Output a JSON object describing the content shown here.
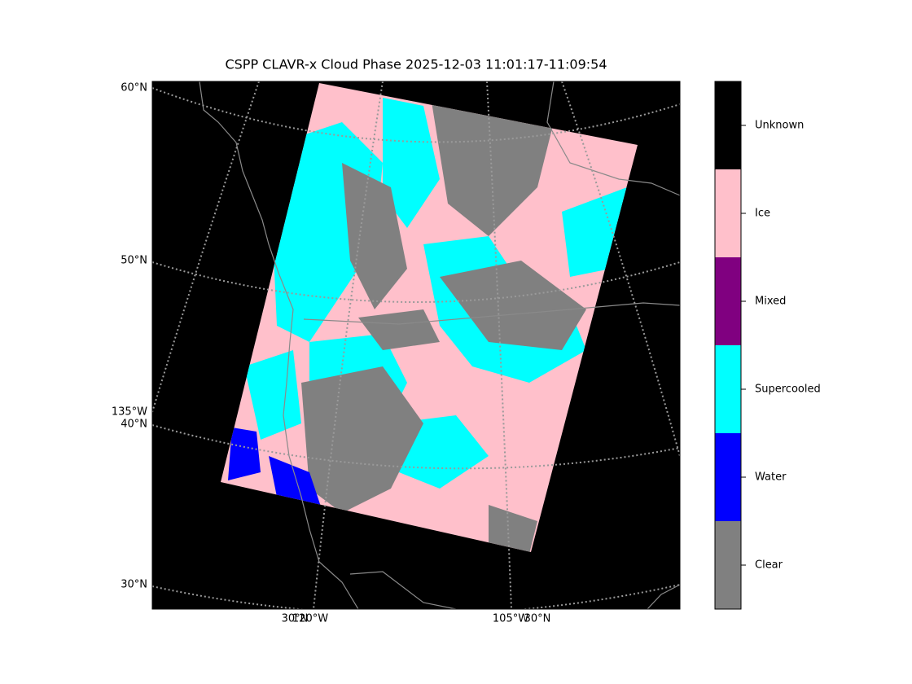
{
  "title": "CSPP CLAVR-x Cloud Phase 2025-12-03 11:01:17-11:09:54",
  "map": {
    "left_labels": [
      "60°N",
      "50°N",
      "135°W",
      "40°N",
      "30°N"
    ],
    "bottom_labels": [
      "30°N",
      "120°W",
      "105°W",
      "30°N"
    ]
  },
  "legend": {
    "categories": [
      {
        "label": "Clear",
        "color": "#808080"
      },
      {
        "label": "Water",
        "color": "#0000ff"
      },
      {
        "label": "Supercooled",
        "color": "#00ffff"
      },
      {
        "label": "Mixed",
        "color": "#800080"
      },
      {
        "label": "Ice",
        "color": "#ffc0cb"
      },
      {
        "label": "Unknown",
        "color": "#000000"
      }
    ]
  }
}
